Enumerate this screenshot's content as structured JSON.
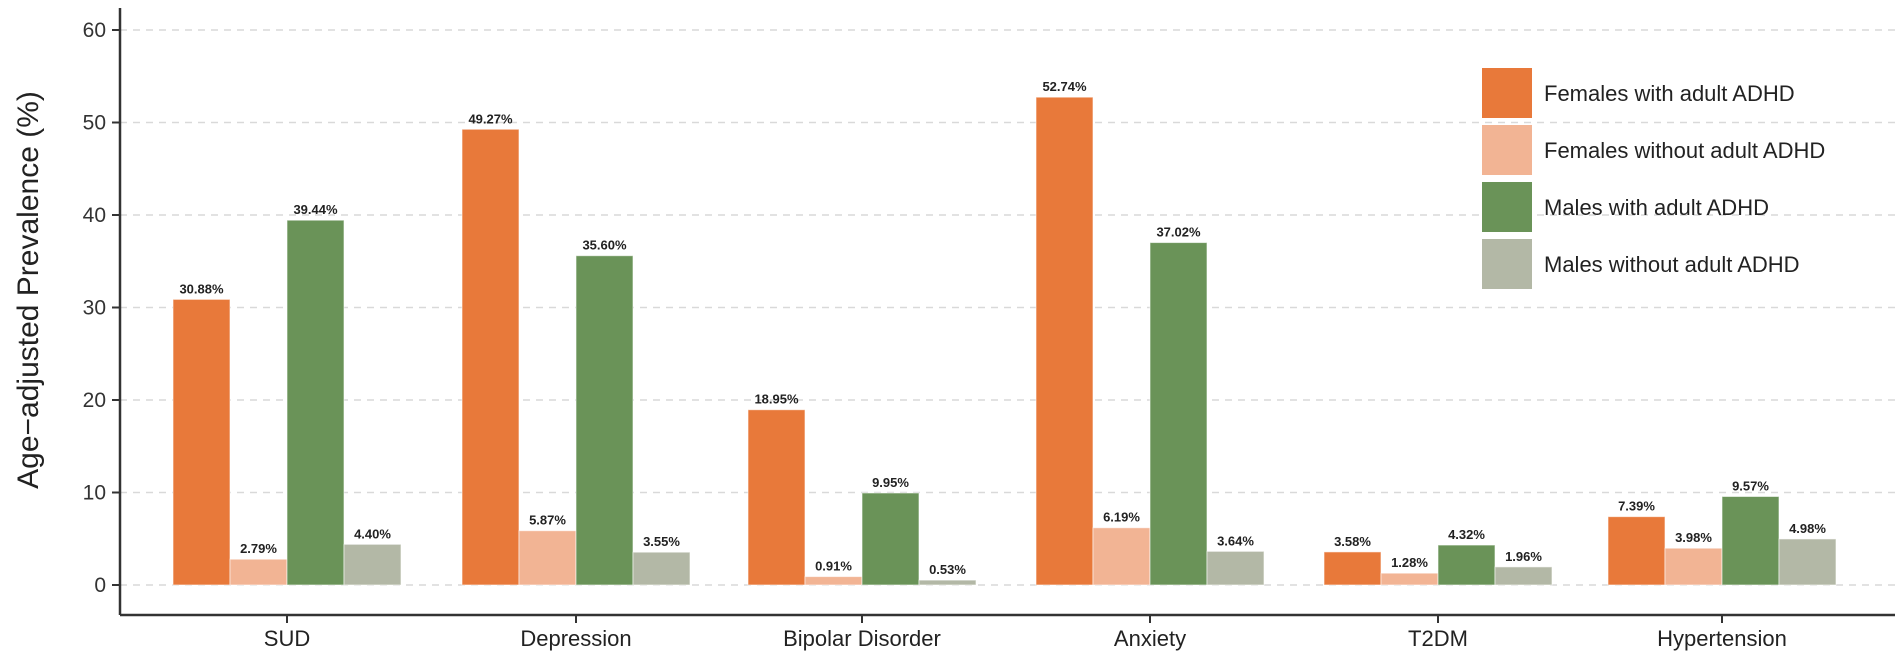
{
  "chart_data": {
    "type": "bar",
    "title": "",
    "xlabel": "",
    "ylabel": "Age−adjusted Prevalence (%)",
    "ylim": [
      0,
      60
    ],
    "yticks": [
      0,
      10,
      20,
      30,
      40,
      50,
      60
    ],
    "grid": true,
    "legend_position": "top-right",
    "categories": [
      "SUD",
      "Depression",
      "Bipolar Disorder",
      "Anxiety",
      "T2DM",
      "Hypertension"
    ],
    "series": [
      {
        "name": "Females with adult ADHD",
        "color": "#e8793a",
        "values": [
          30.88,
          49.27,
          18.95,
          52.74,
          3.58,
          7.39
        ],
        "labels": [
          "30.88%",
          "49.27%",
          "18.95%",
          "52.74%",
          "3.58%",
          "7.39%"
        ]
      },
      {
        "name": "Females without adult ADHD",
        "color": "#f2b494",
        "values": [
          2.79,
          5.87,
          0.91,
          6.19,
          1.28,
          3.98
        ],
        "labels": [
          "2.79%",
          "5.87%",
          "0.91%",
          "6.19%",
          "1.28%",
          "3.98%"
        ]
      },
      {
        "name": "Males with adult ADHD",
        "color": "#6a9358",
        "values": [
          39.44,
          35.6,
          9.95,
          37.02,
          4.32,
          9.57
        ],
        "labels": [
          "39.44%",
          "35.60%",
          "9.95%",
          "37.02%",
          "4.32%",
          "9.57%"
        ]
      },
      {
        "name": "Males without adult ADHD",
        "color": "#b3b8a6",
        "values": [
          4.4,
          3.55,
          0.53,
          3.64,
          1.96,
          4.98
        ],
        "labels": [
          "4.40%",
          "3.55%",
          "0.53%",
          "3.64%",
          "1.96%",
          "4.98%"
        ]
      }
    ]
  }
}
